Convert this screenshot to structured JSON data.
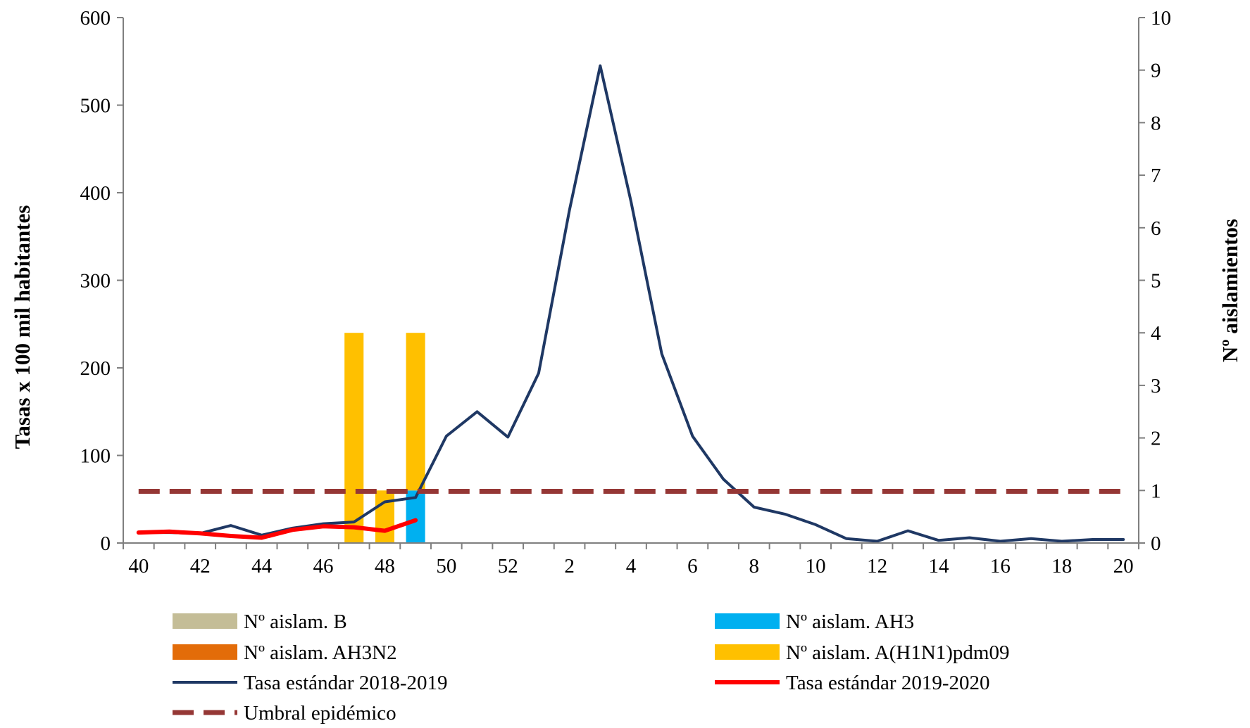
{
  "chart_data": {
    "type": "bar+line",
    "title": "",
    "ylabel_left": "Tasas x 100 mil habitantes",
    "ylabel_right": "Nº aislamientos",
    "y_left_range": [
      0,
      600
    ],
    "y_left_ticks": [
      "0",
      "100",
      "200",
      "300",
      "400",
      "500",
      "600"
    ],
    "y_right_range": [
      0,
      10
    ],
    "y_right_ticks": [
      "0",
      "1",
      "2",
      "3",
      "4",
      "5",
      "6",
      "7",
      "8",
      "9",
      "10"
    ],
    "weeks": [
      40,
      41,
      42,
      43,
      44,
      45,
      46,
      47,
      48,
      49,
      50,
      51,
      52,
      1,
      2,
      3,
      4,
      5,
      6,
      7,
      8,
      9,
      10,
      11,
      12,
      13,
      14,
      15,
      16,
      17,
      18,
      19,
      20
    ],
    "x_tick_labels": [
      "40",
      "42",
      "44",
      "46",
      "48",
      "50",
      "52",
      "2",
      "4",
      "6",
      "8",
      "10",
      "12",
      "14",
      "16",
      "18",
      "20"
    ],
    "bar_series": [
      {
        "name": "Nº aislam. B",
        "color": "#c4bd97",
        "values": [
          0,
          0,
          0,
          0,
          0,
          0,
          0,
          0,
          0,
          0,
          0,
          0,
          0,
          0,
          0,
          0,
          0,
          0,
          0,
          0,
          0,
          0,
          0,
          0,
          0,
          0,
          0,
          0,
          0,
          0,
          0,
          0,
          0
        ]
      },
      {
        "name": "Nº aislam. AH3",
        "color": "#00b0f0",
        "values": [
          0,
          0,
          0,
          0,
          0,
          0,
          0,
          0,
          0,
          1,
          0,
          0,
          0,
          0,
          0,
          0,
          0,
          0,
          0,
          0,
          0,
          0,
          0,
          0,
          0,
          0,
          0,
          0,
          0,
          0,
          0,
          0,
          0
        ]
      },
      {
        "name": "Nº aislam. AH3N2",
        "color": "#e36c09",
        "values": [
          0,
          0,
          0,
          0,
          0,
          0,
          0,
          0,
          0,
          0,
          0,
          0,
          0,
          0,
          0,
          0,
          0,
          0,
          0,
          0,
          0,
          0,
          0,
          0,
          0,
          0,
          0,
          0,
          0,
          0,
          0,
          0,
          0
        ]
      },
      {
        "name": "Nº aislam. A(H1N1)pdm09",
        "color": "#ffc000",
        "values": [
          0,
          0,
          0,
          0,
          0,
          0,
          0,
          4,
          1,
          3,
          0,
          0,
          0,
          0,
          0,
          0,
          0,
          0,
          0,
          0,
          0,
          0,
          0,
          0,
          0,
          0,
          0,
          0,
          0,
          0,
          0,
          0,
          0
        ]
      }
    ],
    "line_series": [
      {
        "name": "Tasa estándar 2018-2019",
        "color": "#1f3864",
        "style": "solid",
        "values": [
          12,
          12,
          11,
          20,
          9,
          17,
          22,
          24,
          47,
          52,
          122,
          150,
          121,
          194,
          380,
          545,
          390,
          216,
          122,
          73,
          41,
          33,
          21,
          5,
          2,
          14,
          3,
          6,
          2,
          5,
          2,
          4,
          4
        ]
      },
      {
        "name": "Tasa estándar 2019-2020",
        "color": "#ff0000",
        "style": "solid",
        "values": [
          12,
          13,
          11,
          8,
          6,
          15,
          19,
          18,
          14,
          26,
          null,
          null,
          null,
          null,
          null,
          null,
          null,
          null,
          null,
          null,
          null,
          null,
          null,
          null,
          null,
          null,
          null,
          null,
          null,
          null,
          null,
          null,
          null
        ]
      },
      {
        "name": "Umbral epidémico",
        "color": "#953735",
        "style": "dashed",
        "values": [
          59,
          59,
          59,
          59,
          59,
          59,
          59,
          59,
          59,
          59,
          59,
          59,
          59,
          59,
          59,
          59,
          59,
          59,
          59,
          59,
          59,
          59,
          59,
          59,
          59,
          59,
          59,
          59,
          59,
          59,
          59,
          59,
          59
        ]
      }
    ],
    "legend": {
      "position": "bottom",
      "items": [
        {
          "label": "Nº aislam. B",
          "color": "#c4bd97",
          "kind": "bar"
        },
        {
          "label": "Nº aislam. AH3",
          "color": "#00b0f0",
          "kind": "bar"
        },
        {
          "label": "Nº aislam. AH3N2",
          "color": "#e36c09",
          "kind": "bar"
        },
        {
          "label": "Nº aislam. A(H1N1)pdm09",
          "color": "#ffc000",
          "kind": "bar"
        },
        {
          "label": "Tasa estándar 2018-2019",
          "color": "#1f3864",
          "kind": "line"
        },
        {
          "label": "Tasa estándar 2019-2020",
          "color": "#ff0000",
          "kind": "line"
        },
        {
          "label": "Umbral epidémico",
          "color": "#953735",
          "kind": "dashed"
        }
      ]
    }
  }
}
